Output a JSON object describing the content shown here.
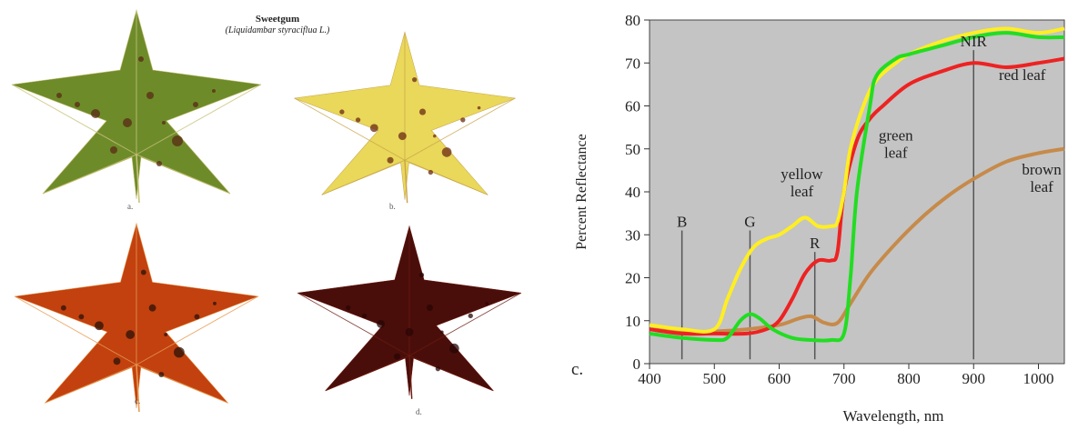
{
  "figure": {
    "title": "Sweetgum",
    "subtitle": "(Liquidambar styraciflua L.)",
    "leaves": [
      {
        "caption": "a.",
        "fill": "#6e8b2a",
        "vein": "#c9c27a",
        "spot": "#5a2a14"
      },
      {
        "caption": "b.",
        "fill": "#e9d85a",
        "vein": "#c8a44a",
        "spot": "#6b2a12"
      },
      {
        "caption": "c.",
        "fill": "#c2410f",
        "vein": "#e89a50",
        "spot": "#2a1208"
      },
      {
        "caption": "d.",
        "fill": "#4a0e0a",
        "vein": "#6b1a10",
        "spot": "#2a0606"
      }
    ]
  },
  "chart_data": {
    "type": "line",
    "panel_label": "c.",
    "xlabel": "Wavelength, nm",
    "ylabel": "Percent Reflectance",
    "xlim": [
      400,
      1040
    ],
    "ylim": [
      0,
      80
    ],
    "xticks": [
      400,
      500,
      600,
      700,
      800,
      900,
      1000
    ],
    "yticks": [
      0,
      10,
      20,
      30,
      40,
      50,
      60,
      70,
      80
    ],
    "background": "#c4c4c4",
    "series": [
      {
        "name": "green leaf",
        "color": "#22dd22",
        "x": [
          400,
          450,
          500,
          520,
          540,
          555,
          570,
          590,
          620,
          650,
          680,
          700,
          710,
          720,
          740,
          750,
          780,
          800,
          850,
          900,
          950,
          1000,
          1040
        ],
        "y": [
          7,
          6,
          5.5,
          6,
          10,
          11.5,
          10.5,
          8,
          6,
          5.5,
          5.5,
          7,
          20,
          40,
          60,
          67,
          71,
          72,
          74,
          76,
          77,
          76,
          76
        ]
      },
      {
        "name": "yellow leaf",
        "color": "#ffee22",
        "x": [
          400,
          450,
          500,
          520,
          540,
          560,
          580,
          600,
          620,
          640,
          660,
          680,
          690,
          700,
          710,
          730,
          750,
          780,
          800,
          850,
          900,
          950,
          1000,
          1040
        ],
        "y": [
          9,
          8,
          8,
          15,
          22,
          27,
          29,
          30,
          32,
          34,
          32,
          32,
          33,
          40,
          50,
          60,
          66,
          70,
          72,
          75,
          77,
          78,
          77,
          78
        ]
      },
      {
        "name": "red leaf",
        "color": "#ee2222",
        "x": [
          400,
          450,
          500,
          550,
          580,
          600,
          620,
          640,
          660,
          680,
          690,
          700,
          720,
          740,
          760,
          800,
          850,
          900,
          950,
          1000,
          1040
        ],
        "y": [
          8,
          7,
          7,
          7,
          8,
          10,
          15,
          21,
          24,
          24,
          26,
          40,
          52,
          57,
          60,
          65,
          68,
          70,
          69,
          70,
          71
        ]
      },
      {
        "name": "brown leaf",
        "color": "#c68a4a",
        "x": [
          400,
          450,
          500,
          550,
          600,
          630,
          650,
          670,
          690,
          710,
          740,
          780,
          820,
          860,
          900,
          950,
          1000,
          1040
        ],
        "y": [
          8,
          7.5,
          7.5,
          8,
          9,
          10.5,
          11,
          9.5,
          9.5,
          14,
          21,
          28,
          34,
          39,
          43,
          47,
          49,
          50
        ]
      }
    ],
    "markers": [
      {
        "label": "B",
        "x": 450,
        "y_top": 31
      },
      {
        "label": "G",
        "x": 555,
        "y_top": 31
      },
      {
        "label": "R",
        "x": 655,
        "y_top": 26
      },
      {
        "label": "NIR",
        "x": 900,
        "y_top": 73
      }
    ]
  }
}
